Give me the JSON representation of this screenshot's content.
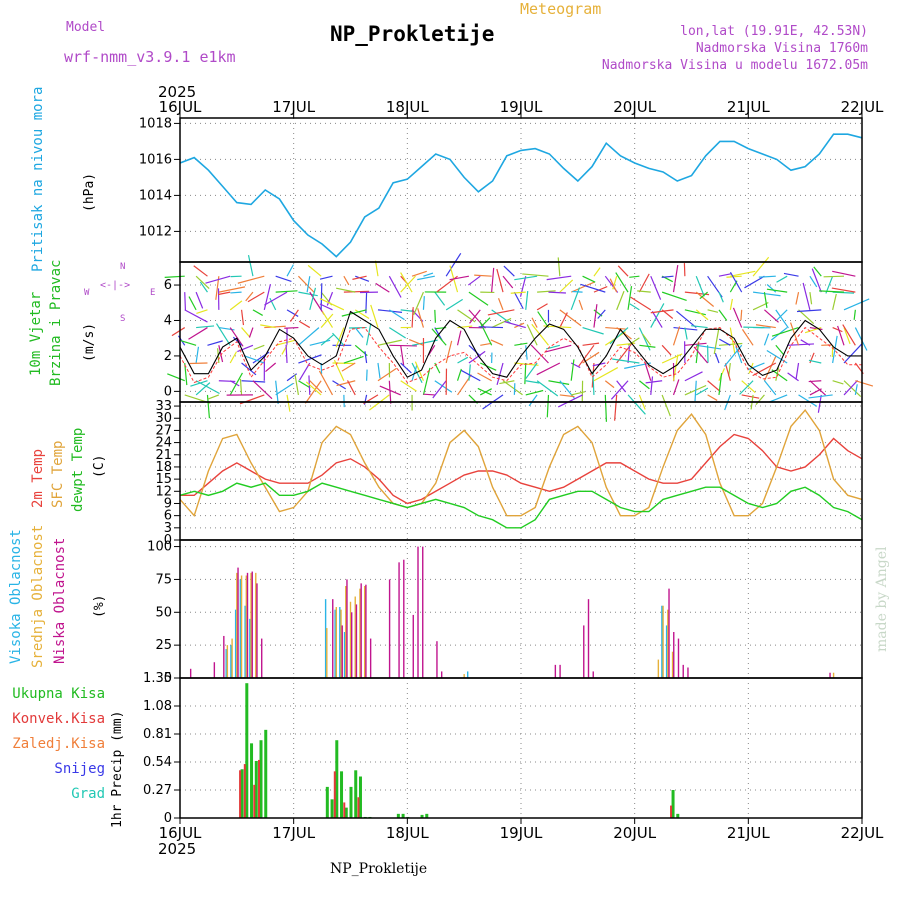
{
  "header": {
    "model_label": "Model",
    "model_name": "wrf-nmm_v3.9.1 e1km",
    "station": "NP_Prokletije",
    "meteogram": "Meteogram",
    "lonlat": "lon,lat (19.91E, 42.53N)",
    "altitude": "Nadmorska Visina 1760m",
    "model_altitude": "Nadmorska Visina u modelu 1672.05m"
  },
  "footer": {
    "station": "NP_Prokletije",
    "credit": "made by Angel"
  },
  "colors": {
    "pressure": "#1ea7e1",
    "temp2m": "#e8423c",
    "sfc": "#e0a43a",
    "dew": "#22cc22",
    "high_cloud": "#29b4e6",
    "mid_cloud": "#e6b13a",
    "low_cloud": "#c0148e",
    "total_precip": "#22bb22",
    "conv_precip": "#e23a3a",
    "frozen": "#f07f3a",
    "snow": "#3a3ae8",
    "hail": "#22c8b4",
    "wind_speed": "#000000",
    "gust": "#ff3a3a",
    "magenta_lbl": "#b04ac8"
  },
  "time_axis": {
    "year": "2025",
    "dates": [
      "16JUL",
      "17JUL",
      "18JUL",
      "19JUL",
      "20JUL",
      "21JUL",
      "22JUL"
    ]
  },
  "panels": {
    "pressure": {
      "label": "Pritisak na nivou mora",
      "unit": "(hPa)",
      "ticks": [
        "1012",
        "1014",
        "1016",
        "1018"
      ]
    },
    "wind": {
      "label1": "10m Vjetar",
      "label2": "Brzina i Pravac",
      "unit": "(m/s)",
      "ticks": [
        "0",
        "2",
        "4",
        "6"
      ],
      "compass_w": "W",
      "compass_e": "E",
      "compass_s": "S",
      "compass_n": "N"
    },
    "temp": {
      "label1": "2m Temp",
      "label2": "SFC Temp",
      "label3": "dewpt Temp",
      "unit": "(C)",
      "ticks": [
        "0",
        "3",
        "6",
        "9",
        "12",
        "15",
        "18",
        "21",
        "24",
        "27",
        "30",
        "33"
      ]
    },
    "cloud": {
      "label1": "Visoka Oblacnost",
      "label2": "Srednja Oblacnost",
      "label3": "Niska Oblacnost",
      "unit": "(%)",
      "ticks": [
        "0",
        "25",
        "50",
        "75",
        "100"
      ]
    },
    "precip": {
      "legend": [
        "Ukupna Kisa",
        "Konvek.Kisa",
        "Zaledj.Kisa",
        "Snijeg",
        "Grad"
      ],
      "unit": "1hr Precip (mm)",
      "ticks": [
        "0",
        "0.27",
        "0.54",
        "0.81",
        "1.08",
        "1.35"
      ]
    }
  },
  "chart_data": [
    {
      "type": "line",
      "title": "Pritisak na nivou mora",
      "ylabel": "(hPa)",
      "ylim": [
        1010.3,
        1018.3
      ],
      "x_hours": [
        0,
        3,
        6,
        9,
        12,
        15,
        18,
        21,
        24,
        27,
        30,
        33,
        36,
        39,
        42,
        45,
        48,
        51,
        54,
        57,
        60,
        63,
        66,
        69,
        72,
        75,
        78,
        81,
        84,
        87,
        90,
        93,
        96,
        99,
        102,
        105,
        108,
        111,
        114,
        117,
        120,
        123,
        126,
        129,
        132,
        135,
        138,
        141,
        144
      ],
      "series": [
        {
          "values": [
            1015.8,
            1016.1,
            1015.4,
            1014.5,
            1013.6,
            1013.5,
            1014.3,
            1013.8,
            1012.6,
            1011.8,
            1011.3,
            1010.6,
            1011.4,
            1012.8,
            1013.3,
            1014.7,
            1014.9,
            1015.6,
            1016.3,
            1016.0,
            1015.0,
            1014.2,
            1014.8,
            1016.2,
            1016.5,
            1016.6,
            1016.3,
            1015.5,
            1014.8,
            1015.6,
            1016.9,
            1016.2,
            1015.8,
            1015.5,
            1015.3,
            1014.8,
            1015.1,
            1016.2,
            1017.0,
            1017.0,
            1016.6,
            1016.3,
            1016.0,
            1015.4,
            1015.6,
            1016.3,
            1017.4,
            1017.4,
            1017.2
          ]
        }
      ]
    },
    {
      "type": "line",
      "title": "10m Vjetar Brzina i Pravac",
      "ylabel": "(m/s)",
      "ylim": [
        -0.6,
        7.3
      ],
      "x_hours": [
        0,
        3,
        6,
        9,
        12,
        15,
        18,
        21,
        24,
        27,
        30,
        33,
        36,
        39,
        42,
        45,
        48,
        51,
        54,
        57,
        60,
        63,
        66,
        69,
        72,
        75,
        78,
        81,
        84,
        87,
        90,
        93,
        96,
        99,
        102,
        105,
        108,
        111,
        114,
        117,
        120,
        123,
        126,
        129,
        132,
        135,
        138,
        141,
        144
      ],
      "series": [
        {
          "values": [
            2.5,
            1.0,
            1.0,
            2.5,
            3.0,
            1.2,
            2.0,
            3.5,
            3.0,
            2.0,
            1.5,
            2.0,
            4.5,
            4.0,
            3.5,
            2.0,
            0.8,
            1.2,
            3.0,
            4.0,
            3.5,
            2.0,
            1.0,
            0.8,
            2.0,
            3.0,
            3.8,
            3.5,
            2.5,
            1.0,
            2.0,
            3.5,
            2.5,
            1.5,
            1.0,
            1.5,
            2.5,
            3.5,
            3.5,
            3.0,
            1.5,
            0.9,
            1.2,
            3.0,
            4.0,
            3.5,
            2.5,
            2.0,
            2.0
          ]
        },
        {
          "values": [
            2.0,
            0.5,
            0.8,
            2.2,
            2.8,
            0.8,
            1.8,
            2.8,
            3.0,
            1.5,
            1.2,
            1.5,
            3.5,
            3.6,
            2.5,
            1.6,
            0.5,
            0.8,
            1.5,
            2.0,
            2.2,
            1.5,
            0.8,
            0.6,
            1.5,
            1.6,
            2.5,
            3.0,
            2.6,
            0.8,
            1.5,
            2.5,
            2.2,
            1.4,
            0.8,
            1.0,
            2.0,
            3.5,
            3.6,
            2.8,
            1.2,
            0.7,
            0.8,
            2.6,
            3.6,
            3.0,
            2.4,
            1.5,
            1.5
          ]
        }
      ]
    },
    {
      "type": "line",
      "title": "Temp",
      "ylabel": "(C)",
      "ylim": [
        0,
        34
      ],
      "x_hours": [
        0,
        3,
        6,
        9,
        12,
        15,
        18,
        21,
        24,
        27,
        30,
        33,
        36,
        39,
        42,
        45,
        48,
        51,
        54,
        57,
        60,
        63,
        66,
        69,
        72,
        75,
        78,
        81,
        84,
        87,
        90,
        93,
        96,
        99,
        102,
        105,
        108,
        111,
        114,
        117,
        120,
        123,
        126,
        129,
        132,
        135,
        138,
        141,
        144
      ],
      "series": [
        {
          "name": "2m Temp",
          "values": [
            11,
            11,
            14,
            17,
            19,
            17,
            15,
            14,
            14,
            14,
            16,
            19,
            20,
            18,
            15,
            11,
            9,
            10,
            12,
            14,
            16,
            17,
            17,
            16,
            14,
            13,
            12,
            13,
            15,
            17,
            19,
            19,
            17,
            15,
            14,
            14,
            15,
            19,
            23,
            26,
            25,
            22,
            18,
            17,
            18,
            21,
            25,
            22,
            20
          ]
        },
        {
          "name": "SFC Temp",
          "values": [
            10,
            6,
            17,
            25,
            26,
            19,
            13,
            7,
            8,
            12,
            24,
            28,
            26,
            19,
            13,
            9,
            8,
            9,
            14,
            24,
            27,
            23,
            13,
            6,
            6,
            8,
            18,
            26,
            28,
            24,
            13,
            6,
            6,
            8,
            18,
            27,
            31,
            26,
            14,
            6,
            6,
            9,
            18,
            28,
            32,
            27,
            15,
            11,
            10
          ]
        },
        {
          "name": "dewpt Temp",
          "values": [
            11,
            12,
            11,
            12,
            14,
            13,
            14,
            11,
            11,
            12,
            14,
            13,
            12,
            11,
            10,
            9,
            8,
            9,
            10,
            9,
            8,
            6,
            5,
            3,
            3,
            5,
            10,
            11,
            12,
            12,
            10,
            8,
            7,
            7,
            10,
            11,
            12,
            13,
            13,
            11,
            9,
            8,
            9,
            12,
            13,
            11,
            8,
            7,
            5
          ]
        }
      ]
    },
    {
      "type": "bar",
      "title": "Oblacnost",
      "ylabel": "(%)",
      "ylim": [
        0,
        105
      ],
      "series": [
        {
          "name": "Visoka Oblacnost",
          "x_hours": [
            10,
            11,
            12,
            13,
            14,
            15,
            31,
            33,
            34,
            35,
            61,
            102,
            103
          ],
          "values": [
            22,
            25,
            52,
            75,
            55,
            45,
            60,
            52,
            54,
            35,
            5,
            55,
            40
          ]
        },
        {
          "name": "Srednja Oblacnost",
          "x_hours": [
            10,
            11,
            12,
            13,
            14,
            15,
            16,
            31,
            33,
            34,
            35,
            36,
            37,
            38,
            39,
            60,
            101,
            102,
            103,
            104,
            138
          ],
          "values": [
            25,
            30,
            80,
            78,
            78,
            80,
            80,
            38,
            54,
            52,
            70,
            58,
            62,
            68,
            70,
            3,
            14,
            55,
            52,
            20,
            4
          ]
        },
        {
          "name": "Niska Oblacnost",
          "x_hours": [
            2,
            7,
            9,
            12,
            14,
            15,
            16,
            17,
            32,
            34,
            35,
            36,
            37,
            38,
            39,
            40,
            44,
            46,
            47,
            49,
            50,
            51,
            54,
            55,
            79,
            80,
            85,
            86,
            87,
            103,
            104,
            105,
            106,
            107,
            137
          ],
          "values": [
            7,
            12,
            32,
            84,
            80,
            81,
            72,
            30,
            60,
            40,
            75,
            50,
            56,
            72,
            71,
            30,
            75,
            88,
            90,
            48,
            100,
            100,
            28,
            5,
            10,
            10,
            40,
            60,
            5,
            68,
            35,
            30,
            10,
            8,
            4
          ]
        }
      ]
    },
    {
      "type": "bar",
      "title": "1hr Precip",
      "ylabel": "1hr Precip (mm)",
      "ylim": [
        0,
        1.35
      ],
      "series": [
        {
          "name": "Ukupna Kisa",
          "x_hours": [
            13,
            14,
            15,
            16,
            17,
            18,
            31,
            32,
            33,
            34,
            35,
            36,
            37,
            38,
            39,
            40,
            46,
            47,
            48,
            51,
            52,
            104,
            105
          ],
          "values": [
            0.47,
            1.3,
            0.72,
            0.55,
            0.75,
            0.85,
            0.3,
            0.18,
            0.75,
            0.45,
            0.1,
            0.3,
            0.46,
            0.4,
            0.01,
            0.01,
            0.04,
            0.04,
            0.01,
            0.03,
            0.04,
            0.27,
            0.04
          ]
        },
        {
          "name": "Konvek.Kisa",
          "x_hours": [
            13,
            14,
            16,
            17,
            33,
            35,
            38,
            104
          ],
          "values": [
            0.46,
            0.52,
            0.32,
            0.56,
            0.45,
            0.15,
            0.2,
            0.12
          ]
        }
      ]
    }
  ]
}
